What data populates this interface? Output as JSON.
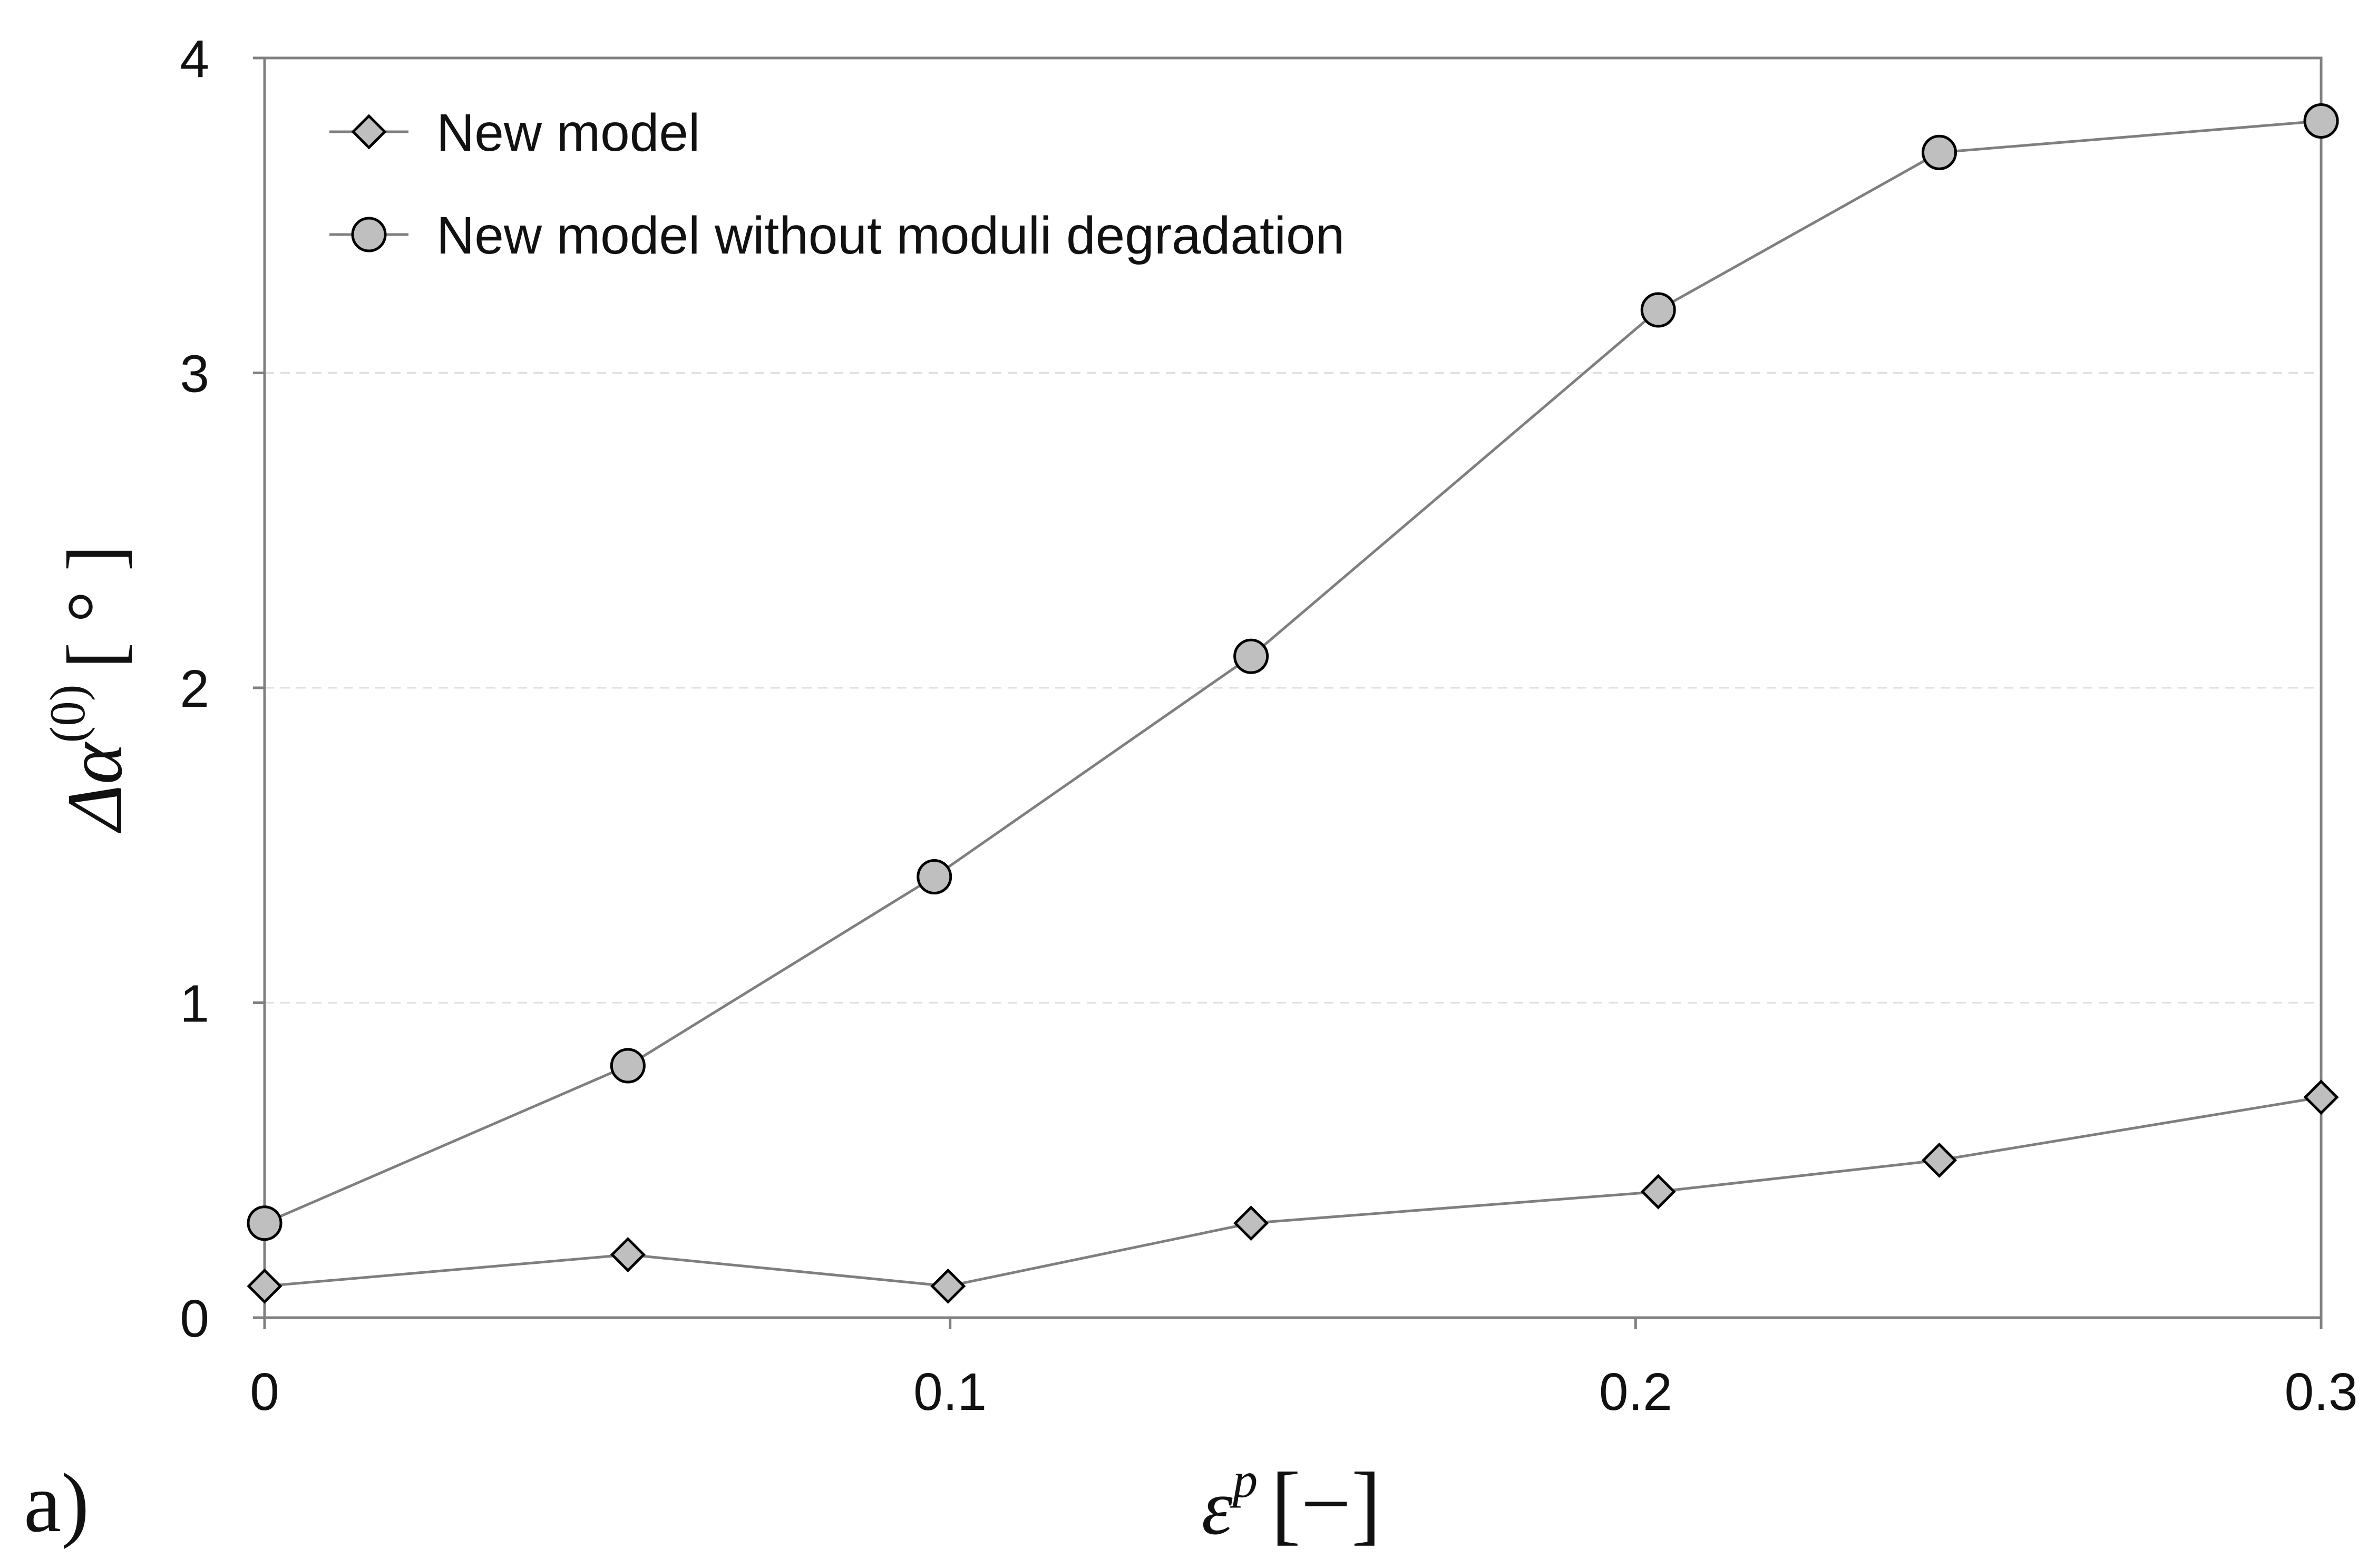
{
  "chart_data": {
    "type": "line",
    "x_axis": {
      "label_symbol": "ε",
      "label_superscript": "p",
      "label_unit": "[−]",
      "range": [
        0,
        0.3
      ],
      "ticks": [
        "0",
        "0.1",
        "0.2",
        "0.3"
      ]
    },
    "y_axis": {
      "label_symbol": "Δα",
      "label_superscript": "(0)",
      "label_unit": "[ ° ]",
      "range": [
        0,
        4
      ],
      "ticks": [
        "0",
        "1",
        "2",
        "3",
        "4"
      ]
    },
    "grid": "horizontal dashed",
    "legend_position": "top-left",
    "panel_label": "a)",
    "series": [
      {
        "name": "New model",
        "marker": "diamond",
        "color": "#7f7f7f",
        "marker_fill": "#bfbfbf",
        "x": [
          0,
          0.053,
          0.0997,
          0.1439,
          0.2033,
          0.2443,
          0.3
        ],
        "y": [
          0.1,
          0.2,
          0.1,
          0.3,
          0.4,
          0.5,
          0.7
        ]
      },
      {
        "name": "New model without moduli degradation",
        "marker": "circle",
        "color": "#7f7f7f",
        "marker_fill": "#bfbfbf",
        "x": [
          0,
          0.053,
          0.0977,
          0.1439,
          0.2033,
          0.2443,
          0.3
        ],
        "y": [
          0.3,
          0.8,
          1.4,
          2.1,
          3.2,
          3.7,
          3.8
        ]
      }
    ]
  }
}
